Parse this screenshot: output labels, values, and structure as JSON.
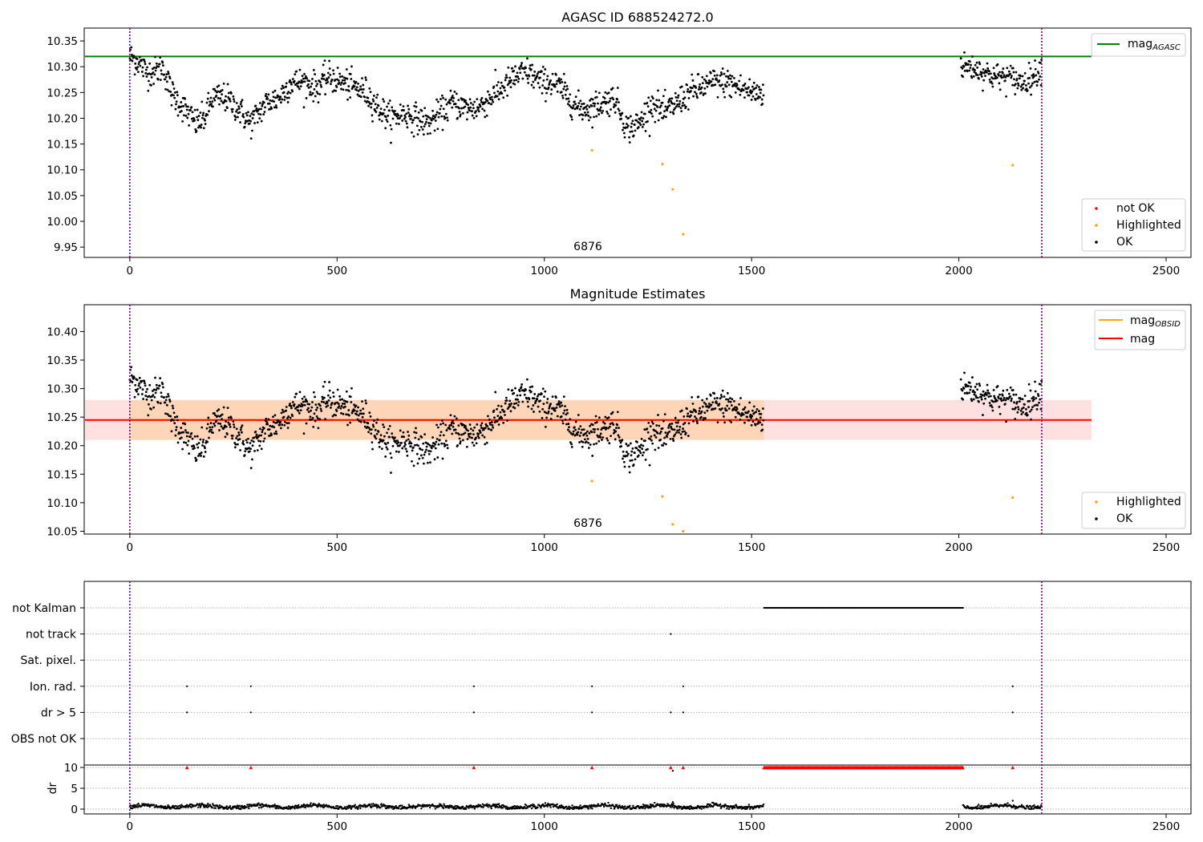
{
  "chart_data": [
    {
      "type": "scatter",
      "title": "AGASC ID 688524272.0",
      "xlabel": "",
      "ylabel": "",
      "xlim": [
        -110,
        2560
      ],
      "ylim": [
        9.93,
        10.375
      ],
      "x_ticks": [
        "0",
        "500",
        "1000",
        "1500",
        "2000",
        "2500"
      ],
      "y_ticks": [
        "9.95",
        "10.00",
        "10.05",
        "10.10",
        "10.15",
        "10.20",
        "10.25",
        "10.30",
        "10.35"
      ],
      "obsid_label": "6876",
      "reference_line": {
        "name": "mag_AGASC",
        "value": 10.32,
        "x_range": [
          -110,
          2320
        ],
        "color": "#008000"
      },
      "vertical_lines": [
        0,
        2200
      ],
      "highlighted_points": [
        [
          1115,
          10.138
        ],
        [
          1285,
          10.111
        ],
        [
          1310,
          10.062
        ],
        [
          1335,
          9.975
        ],
        [
          2130,
          10.109
        ]
      ],
      "legend_top": [
        {
          "label": "mag",
          "sub": "AGASC",
          "color": "#008000"
        }
      ],
      "legend_bottom": [
        {
          "label": "not OK",
          "color": "#ff0000"
        },
        {
          "label": "Highlighted",
          "color": "#ffa500"
        },
        {
          "label": "OK",
          "color": "#000000"
        }
      ],
      "ok_trend": [
        [
          0,
          10.32
        ],
        [
          20,
          10.31
        ],
        [
          40,
          10.29
        ],
        [
          60,
          10.29
        ],
        [
          80,
          10.3
        ],
        [
          100,
          10.25
        ],
        [
          130,
          10.22
        ],
        [
          160,
          10.19
        ],
        [
          180,
          10.2
        ],
        [
          200,
          10.24
        ],
        [
          230,
          10.24
        ],
        [
          260,
          10.22
        ],
        [
          290,
          10.19
        ],
        [
          310,
          10.21
        ],
        [
          330,
          10.23
        ],
        [
          360,
          10.24
        ],
        [
          390,
          10.27
        ],
        [
          420,
          10.27
        ],
        [
          450,
          10.26
        ],
        [
          480,
          10.28
        ],
        [
          510,
          10.27
        ],
        [
          540,
          10.26
        ],
        [
          570,
          10.25
        ],
        [
          600,
          10.22
        ],
        [
          630,
          10.2
        ],
        [
          660,
          10.21
        ],
        [
          690,
          10.2
        ],
        [
          720,
          10.19
        ],
        [
          750,
          10.21
        ],
        [
          780,
          10.23
        ],
        [
          810,
          10.22
        ],
        [
          840,
          10.22
        ],
        [
          870,
          10.24
        ],
        [
          900,
          10.26
        ],
        [
          930,
          10.28
        ],
        [
          960,
          10.29
        ],
        [
          990,
          10.27
        ],
        [
          1020,
          10.27
        ],
        [
          1050,
          10.25
        ],
        [
          1080,
          10.22
        ],
        [
          1110,
          10.22
        ],
        [
          1140,
          10.23
        ],
        [
          1170,
          10.24
        ],
        [
          1200,
          10.18
        ],
        [
          1230,
          10.19
        ],
        [
          1260,
          10.23
        ],
        [
          1290,
          10.21
        ],
        [
          1320,
          10.23
        ],
        [
          1350,
          10.25
        ],
        [
          1380,
          10.26
        ],
        [
          1410,
          10.27
        ],
        [
          1440,
          10.27
        ],
        [
          1470,
          10.26
        ],
        [
          1500,
          10.25
        ],
        [
          1530,
          10.25
        ]
      ],
      "ok_trend2": [
        [
          2000,
          10.3
        ],
        [
          2030,
          10.3
        ],
        [
          2060,
          10.29
        ],
        [
          2090,
          10.28
        ],
        [
          2120,
          10.28
        ],
        [
          2150,
          10.27
        ],
        [
          2180,
          10.28
        ],
        [
          2200,
          10.3
        ]
      ]
    },
    {
      "type": "scatter",
      "title": "Magnitude Estimates",
      "xlabel": "",
      "ylabel": "",
      "xlim": [
        -110,
        2560
      ],
      "ylim": [
        10.045,
        10.447
      ],
      "x_ticks": [
        "0",
        "500",
        "1000",
        "1500",
        "2000",
        "2500"
      ],
      "y_ticks": [
        "10.05",
        "10.10",
        "10.15",
        "10.20",
        "10.25",
        "10.30",
        "10.35",
        "10.40"
      ],
      "obsid_label": "6876",
      "mag_line": {
        "value": 10.245,
        "band": [
          10.21,
          10.28
        ],
        "x_range": [
          -110,
          2320
        ],
        "color": "#ff0000"
      },
      "obsid_band": {
        "x_range": [
          0,
          1530
        ],
        "band": [
          10.21,
          10.28
        ],
        "mean": 10.245,
        "color": "#ffa500"
      },
      "vertical_lines": [
        0,
        2200
      ],
      "highlighted_points": [
        [
          1115,
          10.138
        ],
        [
          1285,
          10.111
        ],
        [
          1310,
          10.062
        ],
        [
          1335,
          10.05
        ],
        [
          2130,
          10.109
        ]
      ],
      "legend_top": [
        {
          "label": "mag",
          "sub": "OBSID",
          "color": "#ffa500"
        },
        {
          "label": "mag",
          "sub": "",
          "color": "#ff0000"
        }
      ],
      "legend_bottom": [
        {
          "label": "Highlighted",
          "color": "#ffa500"
        },
        {
          "label": "OK",
          "color": "#000000"
        }
      ]
    },
    {
      "type": "scatter",
      "title": "",
      "xlim": [
        -110,
        2560
      ],
      "x_ticks": [
        "0",
        "500",
        "1000",
        "1500",
        "2000",
        "2500"
      ],
      "flag_rows": [
        "not Kalman",
        "not track",
        "Sat. pixel.",
        "Ion. rad.",
        "dr > 5",
        "OBS not OK"
      ],
      "flags": {
        "not Kalman": {
          "x_range": [
            1530,
            2010
          ]
        },
        "not track": {
          "points": [
            1305
          ]
        },
        "Sat. pixel.": {
          "points": []
        },
        "Ion. rad.": {
          "points": [
            138,
            292,
            830,
            1115,
            1335,
            2130
          ]
        },
        "dr > 5": {
          "points": [
            138,
            292,
            830,
            1115,
            1305,
            1335,
            2130
          ]
        },
        "OBS not OK": {
          "points": []
        }
      },
      "dr": {
        "ylabel": "dr",
        "y_ticks": [
          "0",
          "5",
          "10"
        ],
        "ylim": [
          -0.5,
          10.5
        ],
        "clipped_points": [
          138,
          292,
          830,
          1115,
          1305,
          1335,
          2130
        ],
        "clipped_range": [
          1530,
          2010
        ],
        "ok_ranges": [
          [
            0,
            1530
          ],
          [
            2010,
            2200
          ]
        ],
        "highlight": [
          [
            1310,
            9.2
          ],
          [
            1310,
            1.7
          ],
          [
            2130,
            2.0
          ]
        ]
      },
      "vertical_lines": [
        0,
        2200
      ]
    }
  ]
}
